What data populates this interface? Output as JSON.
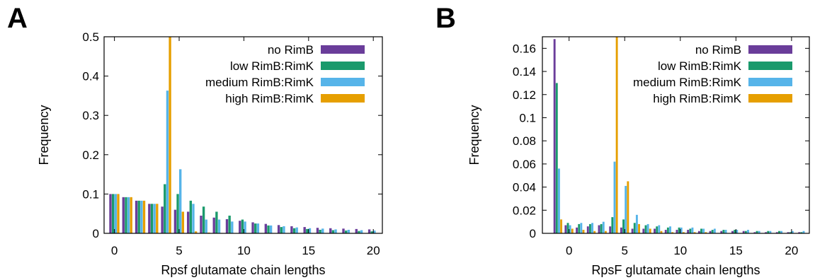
{
  "panels": [
    {
      "letter": "A"
    },
    {
      "letter": "B"
    }
  ],
  "colors": {
    "no_rimb": "#6a3d9a",
    "low": "#1a9a6c",
    "medium": "#56b4e9",
    "high": "#e69f00"
  },
  "chart_data": [
    {
      "type": "bar",
      "title": "",
      "xlabel": "Rpsf glutamate chain lengths",
      "ylabel": "Frequency",
      "xlim": [
        -0.8,
        20.7
      ],
      "ylim": [
        0,
        0.5
      ],
      "xticks": [
        0,
        5,
        10,
        15,
        20
      ],
      "yticks": [
        0,
        0.1,
        0.2,
        0.3,
        0.4,
        0.5
      ],
      "ytick_labels": [
        "0",
        "0.1",
        "0.2",
        "0.3",
        "0.4",
        "0.5"
      ],
      "legend_position": "top-right",
      "categories": [
        0,
        1,
        2,
        3,
        4,
        5,
        6,
        7,
        8,
        9,
        10,
        11,
        12,
        13,
        14,
        15,
        16,
        17,
        18,
        19,
        20
      ],
      "series": [
        {
          "name": "no RimB",
          "color": "#6a3d9a",
          "values": [
            0.1,
            0.092,
            0.083,
            0.075,
            0.068,
            0.06,
            0.055,
            0.045,
            0.04,
            0.036,
            0.032,
            0.028,
            0.024,
            0.021,
            0.018,
            0.016,
            0.014,
            0.013,
            0.012,
            0.011,
            0.01
          ]
        },
        {
          "name": "low RimB:RimK",
          "color": "#1a9a6c",
          "values": [
            0.1,
            0.092,
            0.083,
            0.075,
            0.125,
            0.1,
            0.083,
            0.068,
            0.055,
            0.045,
            0.035,
            0.025,
            0.02,
            0.016,
            0.013,
            0.011,
            0.009,
            0.008,
            0.007,
            0.006,
            0.005
          ]
        },
        {
          "name": "medium RimB:RimK",
          "color": "#56b4e9",
          "values": [
            0.1,
            0.092,
            0.083,
            0.075,
            0.363,
            0.163,
            0.075,
            0.035,
            0.035,
            0.03,
            0.03,
            0.025,
            0.02,
            0.018,
            0.015,
            0.013,
            0.012,
            0.01,
            0.009,
            0.008,
            0.007
          ]
        },
        {
          "name": "high RimB:RimK",
          "color": "#e69f00",
          "values": [
            0.1,
            0.092,
            0.083,
            0.075,
            0.5,
            0.055,
            0.005,
            0.002,
            0.001,
            0,
            0,
            0,
            0,
            0,
            0,
            0,
            0,
            0,
            0,
            0,
            0
          ]
        }
      ]
    },
    {
      "type": "bar",
      "title": "",
      "xlabel": "RpsF glutamate chain lengths",
      "ylabel": "Frequency",
      "xlim": [
        -2.4,
        21.6
      ],
      "ylim": [
        0,
        0.17
      ],
      "xticks": [
        0,
        5,
        10,
        15,
        20
      ],
      "yticks": [
        0,
        0.02,
        0.04,
        0.06,
        0.08,
        0.1,
        0.12,
        0.14,
        0.16
      ],
      "ytick_labels": [
        "0",
        "0.02",
        "0.04",
        "0.06",
        "0.08",
        "0.1",
        "0.12",
        "0.14",
        "0.16"
      ],
      "legend_position": "top-right",
      "categories": [
        -1,
        0,
        1,
        2,
        3,
        4,
        5,
        6,
        7,
        8,
        9,
        10,
        11,
        12,
        13,
        14,
        15,
        16,
        17,
        18,
        19,
        20,
        21
      ],
      "series": [
        {
          "name": "no RimB",
          "color": "#6a3d9a",
          "values": [
            0.168,
            0.007,
            0.005,
            0.006,
            0.007,
            0.006,
            0.005,
            0.004,
            0.004,
            0.004,
            0.003,
            0.003,
            0.003,
            0.002,
            0.002,
            0.002,
            0.002,
            0.002,
            0.001,
            0.001,
            0.001,
            0.001,
            0.001
          ]
        },
        {
          "name": "low RimB:RimK",
          "color": "#1a9a6c",
          "values": [
            0.13,
            0.009,
            0.008,
            0.008,
            0.008,
            0.014,
            0.012,
            0.009,
            0.007,
            0.006,
            0.005,
            0.005,
            0.004,
            0.004,
            0.003,
            0.003,
            0.003,
            0.002,
            0.002,
            0.002,
            0.002,
            0.001,
            0.001
          ]
        },
        {
          "name": "medium RimB:RimK",
          "color": "#56b4e9",
          "values": [
            0.056,
            0.007,
            0.009,
            0.009,
            0.01,
            0.062,
            0.041,
            0.016,
            0.008,
            0.007,
            0.006,
            0.005,
            0.005,
            0.004,
            0.004,
            0.003,
            0.003,
            0.003,
            0.002,
            0.002,
            0.002,
            0.002,
            0.002
          ]
        },
        {
          "name": "high RimB:RimK",
          "color": "#e69f00",
          "values": [
            0.012,
            0.004,
            0.003,
            0.002,
            0.002,
            0.17,
            0.045,
            0.008,
            0.004,
            0.002,
            0.001,
            0.001,
            0.001,
            0.001,
            0,
            0,
            0,
            0,
            0,
            0,
            0,
            0,
            0
          ]
        }
      ]
    }
  ]
}
